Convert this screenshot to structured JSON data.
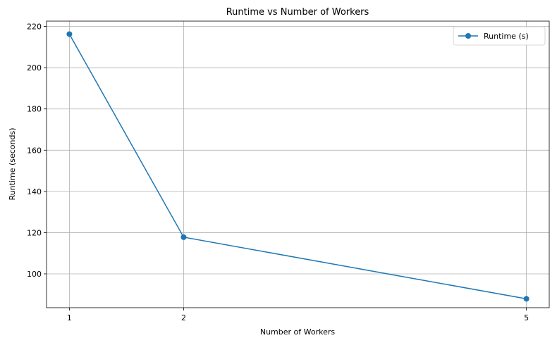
{
  "chart_data": {
    "type": "line",
    "title": "Runtime vs Number of Workers",
    "xlabel": "Number of Workers",
    "ylabel": "Runtime (seconds)",
    "x": [
      1,
      2,
      5
    ],
    "xticks": [
      "1",
      "2",
      "5"
    ],
    "yticks": [
      100,
      120,
      140,
      160,
      180,
      200,
      220
    ],
    "xlim": [
      0.8,
      5.2
    ],
    "ylim": [
      83.6,
      222.6
    ],
    "grid": true,
    "legend": "top-right",
    "series": [
      {
        "name": "Runtime (s)",
        "values": [
          216.3,
          117.8,
          87.9
        ],
        "color": "#1f77b4",
        "marker": "circle"
      }
    ]
  }
}
